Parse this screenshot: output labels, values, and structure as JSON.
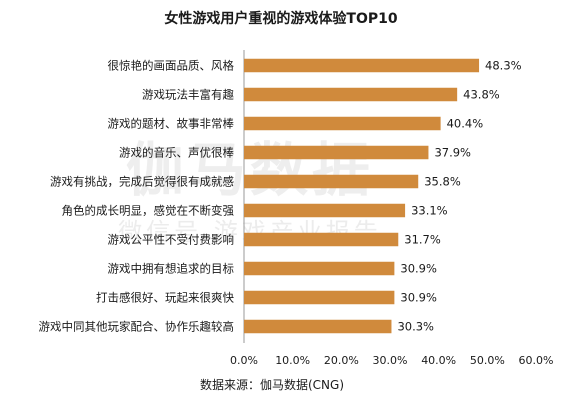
{
  "chart_data": {
    "type": "bar",
    "orientation": "horizontal",
    "title": "女性游戏用户重视的游戏体验TOP10",
    "categories": [
      "很惊艳的画面品质、风格",
      "游戏玩法丰富有趣",
      "游戏的题材、故事非常棒",
      "游戏的音乐、声优很棒",
      "游戏有挑战，完成后觉得很有成就感",
      "角色的成长明显，感觉在不断变强",
      "游戏公平性不受付费影响",
      "游戏中拥有想追求的目标",
      "打击感很好、玩起来很爽快",
      "游戏中同其他玩家配合、协作乐趣较高"
    ],
    "values": [
      48.3,
      43.8,
      40.4,
      37.9,
      35.8,
      33.1,
      31.7,
      30.9,
      30.9,
      30.3
    ],
    "value_labels": [
      "48.3%",
      "43.8%",
      "40.4%",
      "37.9%",
      "35.8%",
      "33.1%",
      "31.7%",
      "30.9%",
      "30.9%",
      "30.3%"
    ],
    "xlim": [
      0,
      60
    ],
    "xticks": [
      "0.0%",
      "10.0%",
      "20.0%",
      "30.0%",
      "40.0%",
      "50.0%",
      "60.0%"
    ],
    "grid": false,
    "bar_color": "#d08a3c",
    "source": "数据来源：伽马数据(CNG)",
    "watermark": {
      "main": "伽马数据",
      "sub": "微信号  游戏产业报告"
    }
  }
}
